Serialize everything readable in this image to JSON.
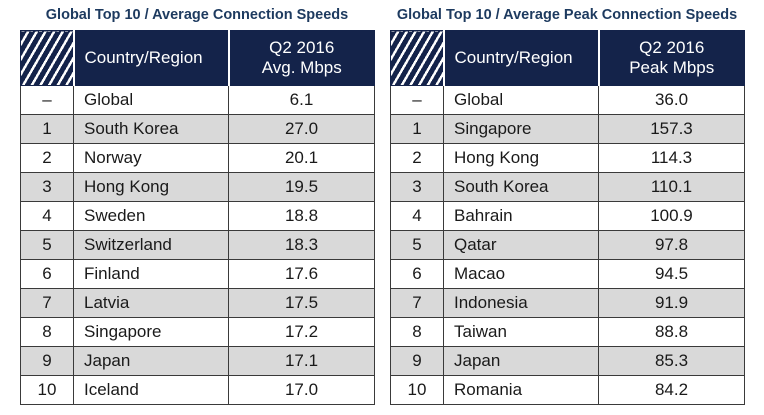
{
  "left": {
    "title": "Global Top 10 / Average Connection Speeds",
    "header": {
      "country": "Country/Region",
      "metric_line1": "Q2 2016",
      "metric_line2": "Avg. Mbps"
    },
    "rows": [
      {
        "rank": "–",
        "name": "Global",
        "value": "6.1"
      },
      {
        "rank": "1",
        "name": "South Korea",
        "value": "27.0"
      },
      {
        "rank": "2",
        "name": "Norway",
        "value": "20.1"
      },
      {
        "rank": "3",
        "name": "Hong Kong",
        "value": "19.5"
      },
      {
        "rank": "4",
        "name": "Sweden",
        "value": "18.8"
      },
      {
        "rank": "5",
        "name": "Switzerland",
        "value": "18.3"
      },
      {
        "rank": "6",
        "name": "Finland",
        "value": "17.6"
      },
      {
        "rank": "7",
        "name": "Latvia",
        "value": "17.5"
      },
      {
        "rank": "8",
        "name": "Singapore",
        "value": "17.2"
      },
      {
        "rank": "9",
        "name": "Japan",
        "value": "17.1"
      },
      {
        "rank": "10",
        "name": "Iceland",
        "value": "17.0"
      }
    ]
  },
  "right": {
    "title": "Global Top 10 / Average Peak Connection Speeds",
    "header": {
      "country": "Country/Region",
      "metric_line1": "Q2 2016",
      "metric_line2": "Peak Mbps"
    },
    "rows": [
      {
        "rank": "–",
        "name": "Global",
        "value": "36.0"
      },
      {
        "rank": "1",
        "name": "Singapore",
        "value": "157.3"
      },
      {
        "rank": "2",
        "name": "Hong Kong",
        "value": "114.3"
      },
      {
        "rank": "3",
        "name": "South Korea",
        "value": "110.1"
      },
      {
        "rank": "4",
        "name": "Bahrain",
        "value": "100.9"
      },
      {
        "rank": "5",
        "name": "Qatar",
        "value": "97.8"
      },
      {
        "rank": "6",
        "name": "Macao",
        "value": "94.5"
      },
      {
        "rank": "7",
        "name": "Indonesia",
        "value": "91.9"
      },
      {
        "rank": "8",
        "name": "Taiwan",
        "value": "88.8"
      },
      {
        "rank": "9",
        "name": "Japan",
        "value": "85.3"
      },
      {
        "rank": "10",
        "name": "Romania",
        "value": "84.2"
      }
    ]
  }
}
